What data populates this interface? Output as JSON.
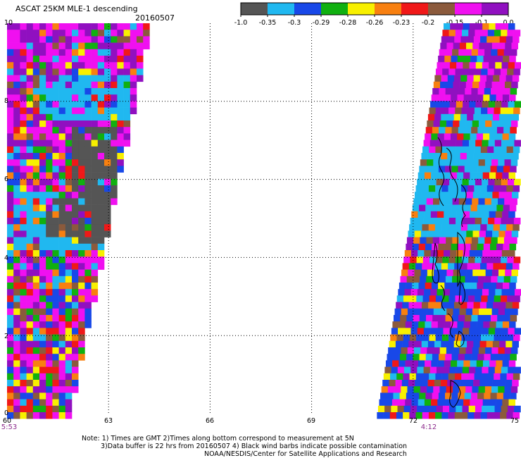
{
  "header": {
    "title": "ASCAT 25KM MLE-1 descending",
    "date": "20160507"
  },
  "colorbar": {
    "labels": [
      "-1.0",
      "-0.35",
      "-0.3",
      "-0.29",
      "-0.28",
      "-0.26",
      "-0.23",
      "-0.2",
      "-0.15",
      "-0.1",
      "0.0"
    ],
    "colors": [
      "#555555",
      "#20b8f0",
      "#1848e8",
      "#10b010",
      "#f8f000",
      "#f88010",
      "#f01818",
      "#8b5a3c",
      "#f010f0",
      "#9010c0"
    ]
  },
  "axes": {
    "x_ticks": [
      "60",
      "63",
      "66",
      "69",
      "72",
      "75"
    ],
    "y_ticks": [
      "0",
      "2",
      "4",
      "6",
      "8",
      "10"
    ],
    "x_range": [
      60,
      75
    ],
    "y_range": [
      0,
      10
    ]
  },
  "times": {
    "left": "5:53",
    "right": "4:12"
  },
  "notes": {
    "line1": "Note: 1) Times are GMT 2)Times along bottom correspond to measurement at 5N",
    "line2": "3)Data buffer is 22 hrs from 20160507 4) Black wind barbs indicate possible contamination",
    "line3": "NOAA/NESDIS/Center for Satellite Applications and Research"
  }
}
